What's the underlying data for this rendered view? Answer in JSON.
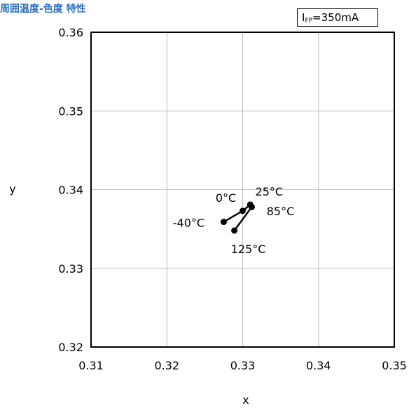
{
  "chart_data": {
    "type": "scatter",
    "title": "周囲温度-色度 特性",
    "condition": {
      "symbol": "I",
      "subscript": "FP",
      "value": "=350mA"
    },
    "xlabel": "x",
    "ylabel": "y",
    "xlim": [
      0.31,
      0.35
    ],
    "ylim": [
      0.32,
      0.36
    ],
    "x_ticks": [
      "0.31",
      "0.32",
      "0.33",
      "0.34",
      "0.35"
    ],
    "y_ticks": [
      "0.32",
      "0.33",
      "0.34",
      "0.35",
      "0.36"
    ],
    "grid": true,
    "line_color": "#000000",
    "series": [
      {
        "points": [
          {
            "label": "-40°C",
            "x": 0.3275,
            "y": 0.3359
          },
          {
            "label": "0°C",
            "x": 0.33,
            "y": 0.3373
          },
          {
            "label": "25°C",
            "x": 0.331,
            "y": 0.3381
          },
          {
            "label": "85°C",
            "x": 0.3312,
            "y": 0.3378
          },
          {
            "label": "125°C",
            "x": 0.3289,
            "y": 0.3348
          }
        ]
      }
    ]
  }
}
